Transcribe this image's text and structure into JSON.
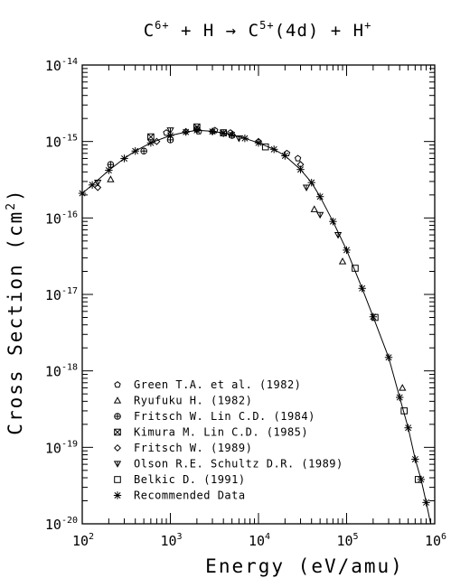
{
  "chart_data": {
    "type": "scatter",
    "title": {
      "parts": [
        "C",
        "6+",
        " + H → C",
        "5+",
        "(4d) + H",
        "+"
      ]
    },
    "xlabel": "Energy (eV/amu)",
    "ylabel": {
      "parts": [
        "Cross Section (cm",
        "2",
        ")"
      ]
    },
    "xscale": "log",
    "yscale": "log",
    "xlim": [
      100,
      1000000
    ],
    "ylim": [
      1e-20,
      1e-14
    ],
    "x_ticks": [
      {
        "base": "10",
        "exp": "2"
      },
      {
        "base": "10",
        "exp": "3"
      },
      {
        "base": "10",
        "exp": "4"
      },
      {
        "base": "10",
        "exp": "5"
      },
      {
        "base": "10",
        "exp": "6"
      }
    ],
    "y_ticks": [
      {
        "base": "10",
        "exp": "-14"
      },
      {
        "base": "10",
        "exp": "-15"
      },
      {
        "base": "10",
        "exp": "-16"
      },
      {
        "base": "10",
        "exp": "-17"
      },
      {
        "base": "10",
        "exp": "-18"
      },
      {
        "base": "10",
        "exp": "-19"
      },
      {
        "base": "10",
        "exp": "-20"
      }
    ],
    "grid": false,
    "legend_position": "bottom-left",
    "series": [
      {
        "name": "Green T.A. et al. (1982)",
        "marker": "pentagon",
        "points": [
          [
            900,
            1.3e-15
          ],
          [
            2100,
            1.35e-15
          ],
          [
            3200,
            1.4e-15
          ],
          [
            4800,
            1.3e-15
          ],
          [
            21000,
            7e-16
          ],
          [
            28000,
            6e-16
          ]
        ]
      },
      {
        "name": "Ryufuku H. (1982)",
        "marker": "triangle-up",
        "points": [
          [
            210,
            3.2e-16
          ],
          [
            43000,
            1.3e-16
          ],
          [
            90000,
            2.7e-17
          ],
          [
            430000,
            6e-19
          ]
        ]
      },
      {
        "name": "Fritsch W. Lin C.D. (1984)",
        "marker": "plus-circle",
        "points": [
          [
            210,
            5e-16
          ],
          [
            500,
            7.5e-16
          ],
          [
            1000,
            1.05e-15
          ],
          [
            2000,
            1.45e-15
          ],
          [
            5000,
            1.2e-15
          ]
        ]
      },
      {
        "name": "Kimura M. Lin C.D. (1985)",
        "marker": "x-box",
        "points": [
          [
            600,
            1.15e-15
          ],
          [
            2000,
            1.55e-15
          ],
          [
            4000,
            1.3e-15
          ]
        ]
      },
      {
        "name": "Fritsch W. (1989)",
        "marker": "diamond",
        "points": [
          [
            150,
            2.5e-16
          ],
          [
            700,
            1e-15
          ],
          [
            1500,
            1.35e-15
          ],
          [
            3000,
            1.35e-15
          ],
          [
            10000,
            1e-15
          ],
          [
            30000,
            5e-16
          ]
        ]
      },
      {
        "name": "Olson R.E. Schultz D.R. (1989)",
        "marker": "triangle-down",
        "points": [
          [
            150,
            2.9e-16
          ],
          [
            1000,
            1.4e-15
          ],
          [
            6000,
            1.1e-15
          ],
          [
            35000,
            2.5e-16
          ],
          [
            50000,
            1.1e-16
          ],
          [
            80000,
            6e-17
          ]
        ]
      },
      {
        "name": "Belkic D. (1991)",
        "marker": "square",
        "points": [
          [
            12000,
            8.5e-16
          ],
          [
            125000,
            2.2e-17
          ],
          [
            210000,
            5e-18
          ],
          [
            450000,
            3e-19
          ],
          [
            650000,
            3.8e-20
          ]
        ]
      },
      {
        "name": "Recommended Data",
        "marker": "asterisk",
        "points": [
          [
            100,
            2.1e-16
          ],
          [
            130,
            2.7e-16
          ],
          [
            200,
            4.2e-16
          ],
          [
            300,
            6e-16
          ],
          [
            400,
            7.5e-16
          ],
          [
            600,
            9.6e-16
          ],
          [
            1000,
            1.2e-15
          ],
          [
            1500,
            1.33e-15
          ],
          [
            2000,
            1.4e-15
          ],
          [
            3000,
            1.35e-15
          ],
          [
            4000,
            1.28e-15
          ],
          [
            5000,
            1.22e-15
          ],
          [
            7000,
            1.1e-15
          ],
          [
            10000,
            9.6e-16
          ],
          [
            15000,
            7.9e-16
          ],
          [
            20000,
            6.5e-16
          ],
          [
            30000,
            4.3e-16
          ],
          [
            40000,
            2.9e-16
          ],
          [
            50000,
            1.9e-16
          ],
          [
            70000,
            9e-17
          ],
          [
            100000,
            3.8e-17
          ],
          [
            150000,
            1.2e-17
          ],
          [
            200000,
            5.1e-18
          ],
          [
            300000,
            1.5e-18
          ],
          [
            400000,
            4.5e-19
          ],
          [
            500000,
            1.8e-19
          ],
          [
            600000,
            7e-20
          ],
          [
            700000,
            3.8e-20
          ],
          [
            800000,
            1.9e-20
          ]
        ]
      }
    ],
    "fit_curve": {
      "x": [
        100,
        130,
        200,
        300,
        400,
        600,
        1000,
        1500,
        2000,
        3000,
        4000,
        5000,
        7000,
        10000,
        15000,
        20000,
        30000,
        40000,
        50000,
        70000,
        100000,
        150000,
        200000,
        300000,
        400000,
        500000,
        600000,
        700000,
        800000,
        900000
      ],
      "y": [
        2.1e-16,
        2.7e-16,
        4.2e-16,
        6e-16,
        7.5e-16,
        9.6e-16,
        1.2e-15,
        1.33e-15,
        1.4e-15,
        1.36e-15,
        1.29e-15,
        1.22e-15,
        1.1e-15,
        9.6e-16,
        7.9e-16,
        6.5e-16,
        4.3e-16,
        2.9e-16,
        1.9e-16,
        9e-17,
        3.8e-17,
        1.2e-17,
        5.1e-18,
        1.5e-18,
        4.5e-19,
        1.8e-19,
        7e-20,
        3.8e-20,
        1.9e-20,
        1e-20
      ]
    }
  }
}
